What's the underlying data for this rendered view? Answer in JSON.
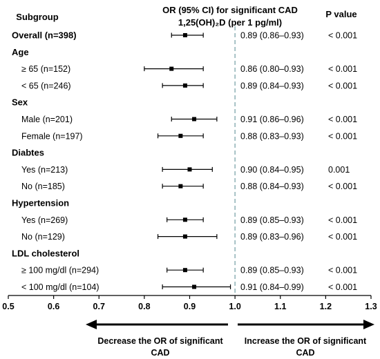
{
  "chart_data": {
    "type": "forest",
    "title": "OR (95% CI) for significant CAD",
    "subtitle": "1,25(OH)₂D (per 1 pg/ml)",
    "columns": {
      "subgroup": "Subgroup",
      "p_value": "P value"
    },
    "xlim": [
      0.5,
      1.3
    ],
    "ticks": [
      "0.5",
      "0.6",
      "0.7",
      "0.8",
      "0.9",
      "1.0",
      "1.1",
      "1.2",
      "1.3"
    ],
    "reference_line": 1.0,
    "rows": [
      {
        "label": "Overall (n=398)",
        "kind": "bold",
        "or": 0.89,
        "lo": 0.86,
        "hi": 0.93,
        "ci_text": "0.89 (0.86–0.93)",
        "p": "< 0.001"
      },
      {
        "label": "Age",
        "kind": "group"
      },
      {
        "label": "≥ 65 (n=152)",
        "kind": "sub",
        "or": 0.86,
        "lo": 0.8,
        "hi": 0.93,
        "ci_text": "0.86 (0.80–0.93)",
        "p": "< 0.001"
      },
      {
        "label": "< 65 (n=246)",
        "kind": "sub",
        "or": 0.89,
        "lo": 0.84,
        "hi": 0.93,
        "ci_text": "0.89 (0.84–0.93)",
        "p": "< 0.001"
      },
      {
        "label": "Sex",
        "kind": "group"
      },
      {
        "label": "Male (n=201)",
        "kind": "sub",
        "or": 0.91,
        "lo": 0.86,
        "hi": 0.96,
        "ci_text": "0.91 (0.86–0.96)",
        "p": "< 0.001"
      },
      {
        "label": "Female (n=197)",
        "kind": "sub",
        "or": 0.88,
        "lo": 0.83,
        "hi": 0.93,
        "ci_text": "0.88 (0.83–0.93)",
        "p": "< 0.001"
      },
      {
        "label": "Diabtes",
        "kind": "group"
      },
      {
        "label": "Yes (n=213)",
        "kind": "sub",
        "or": 0.9,
        "lo": 0.84,
        "hi": 0.95,
        "ci_text": "0.90 (0.84–0.95)",
        "p": "0.001"
      },
      {
        "label": "No (n=185)",
        "kind": "sub",
        "or": 0.88,
        "lo": 0.84,
        "hi": 0.93,
        "ci_text": "0.88 (0.84–0.93)",
        "p": "< 0.001"
      },
      {
        "label": "Hypertension",
        "kind": "group"
      },
      {
        "label": "Yes (n=269)",
        "kind": "sub",
        "or": 0.89,
        "lo": 0.85,
        "hi": 0.93,
        "ci_text": "0.89 (0.85–0.93)",
        "p": "< 0.001"
      },
      {
        "label": "No (n=129)",
        "kind": "sub",
        "or": 0.89,
        "lo": 0.83,
        "hi": 0.96,
        "ci_text": "0.89 (0.83–0.96)",
        "p": "< 0.001"
      },
      {
        "label": "LDL cholesterol",
        "kind": "group"
      },
      {
        "label": "≥ 100 mg/dl  (n=294)",
        "kind": "sub",
        "or": 0.89,
        "lo": 0.85,
        "hi": 0.93,
        "ci_text": "0.89 (0.85–0.93)",
        "p": "< 0.001"
      },
      {
        "label": "< 100 mg/dl  (n=104)",
        "kind": "sub",
        "or": 0.91,
        "lo": 0.84,
        "hi": 0.99,
        "ci_text": "0.91 (0.84–0.99)",
        "p": "< 0.001"
      }
    ],
    "footer": {
      "left_line1": "Decrease the OR of significant",
      "left_line2": "CAD",
      "right_line1": "Increase the OR of significant",
      "right_line2": "CAD"
    }
  }
}
